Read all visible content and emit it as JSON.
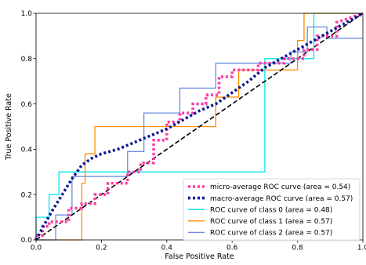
{
  "chart_data": {
    "type": "line",
    "xlabel": "False Positive Rate",
    "ylabel": "True Positive Rate",
    "xlim": [
      0.0,
      1.0
    ],
    "ylim": [
      0.0,
      1.0
    ],
    "x_ticks": [
      "0.0",
      "0.2",
      "0.4",
      "0.6",
      "0.8",
      "1.0"
    ],
    "y_ticks": [
      "0.0",
      "0.2",
      "0.4",
      "0.6",
      "0.8",
      "1.0"
    ],
    "grid": false,
    "legend_position": "lower-right",
    "series": [
      {
        "name": "micro-average ROC curve (area = 0.54)",
        "color": "#ff3aa6",
        "style": "dotted",
        "x": [
          0.0,
          0.0,
          0.02,
          0.02,
          0.04,
          0.04,
          0.1,
          0.1,
          0.14,
          0.14,
          0.18,
          0.18,
          0.22,
          0.22,
          0.28,
          0.28,
          0.32,
          0.32,
          0.36,
          0.36,
          0.4,
          0.4,
          0.44,
          0.44,
          0.48,
          0.48,
          0.52,
          0.52,
          0.56,
          0.56,
          0.6,
          0.6,
          0.68,
          0.68,
          0.76,
          0.76,
          0.82,
          0.82,
          0.86,
          0.86,
          0.92,
          0.92,
          1.0
        ],
        "y": [
          0.0,
          0.02,
          0.02,
          0.06,
          0.06,
          0.08,
          0.08,
          0.14,
          0.14,
          0.16,
          0.16,
          0.2,
          0.2,
          0.25,
          0.25,
          0.3,
          0.3,
          0.34,
          0.34,
          0.44,
          0.44,
          0.52,
          0.52,
          0.56,
          0.56,
          0.6,
          0.6,
          0.64,
          0.64,
          0.72,
          0.72,
          0.75,
          0.75,
          0.78,
          0.78,
          0.8,
          0.8,
          0.84,
          0.84,
          0.9,
          0.9,
          0.96,
          1.0
        ]
      },
      {
        "name": "macro-average ROC curve (area = 0.57)",
        "color": "#0a1a90",
        "style": "dotted",
        "x": [
          0.0,
          0.03,
          0.05,
          0.08,
          0.11,
          0.14,
          0.17,
          0.2,
          0.25,
          0.3,
          0.35,
          0.4,
          0.45,
          0.5,
          0.55,
          0.6,
          0.65,
          0.7,
          0.75,
          0.8,
          0.85,
          0.9,
          0.95,
          1.0
        ],
        "y": [
          0.0,
          0.08,
          0.13,
          0.2,
          0.27,
          0.33,
          0.36,
          0.38,
          0.4,
          0.43,
          0.46,
          0.49,
          0.53,
          0.57,
          0.6,
          0.65,
          0.7,
          0.76,
          0.8,
          0.84,
          0.88,
          0.92,
          0.96,
          1.0
        ]
      },
      {
        "name": "ROC curve of class 0 (area = 0.48)",
        "color": "#00e5ee",
        "style": "solid",
        "x": [
          0.0,
          0.0,
          0.04,
          0.04,
          0.07,
          0.07,
          0.7,
          0.7,
          0.74,
          0.74,
          0.85,
          0.85,
          1.0
        ],
        "y": [
          0.0,
          0.1,
          0.1,
          0.2,
          0.2,
          0.3,
          0.3,
          0.8,
          0.8,
          0.8,
          0.8,
          1.0,
          1.0
        ]
      },
      {
        "name": "ROC curve of class 1 (area = 0.57)",
        "color": "#ff8c00",
        "style": "solid",
        "x": [
          0.0,
          0.14,
          0.14,
          0.15,
          0.15,
          0.18,
          0.18,
          0.55,
          0.55,
          0.62,
          0.62,
          0.64,
          0.64,
          0.72,
          0.72,
          0.8,
          0.8,
          0.82,
          0.82,
          1.0
        ],
        "y": [
          0.0,
          0.0,
          0.25,
          0.25,
          0.38,
          0.38,
          0.5,
          0.5,
          0.63,
          0.63,
          0.75,
          0.75,
          0.75,
          0.75,
          0.75,
          0.75,
          0.88,
          0.88,
          1.0,
          1.0
        ]
      },
      {
        "name": "ROC curve of class 2 (area = 0.57)",
        "color": "#6b8de0",
        "style": "solid",
        "x": [
          0.0,
          0.06,
          0.06,
          0.11,
          0.11,
          0.28,
          0.28,
          0.33,
          0.33,
          0.39,
          0.39,
          0.44,
          0.44,
          0.55,
          0.55,
          0.67,
          0.67,
          0.78,
          0.78,
          0.83,
          0.83,
          0.89,
          0.89,
          1.0
        ],
        "y": [
          0.0,
          0.0,
          0.11,
          0.11,
          0.28,
          0.28,
          0.39,
          0.39,
          0.56,
          0.56,
          0.56,
          0.56,
          0.67,
          0.67,
          0.78,
          0.78,
          0.78,
          0.78,
          0.83,
          0.83,
          0.94,
          0.94,
          0.89,
          0.89
        ]
      },
      {
        "name": "",
        "color": "#000000",
        "style": "dashed",
        "x": [
          0.0,
          1.0
        ],
        "y": [
          0.0,
          1.0
        ]
      }
    ]
  }
}
